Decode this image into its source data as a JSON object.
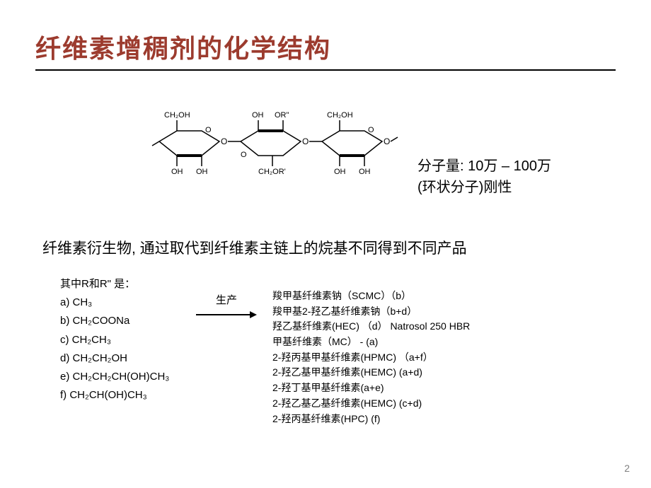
{
  "title": {
    "text": "纤维素增稠剂的化学结构",
    "color": "#9c3b2e"
  },
  "diagram": {
    "labels_top": [
      "CH₂OH",
      "OR\"",
      "CH₂OH"
    ],
    "labels_bottom": [
      "OH",
      "OH",
      "CH₂OR'",
      "OH",
      "OH"
    ],
    "ring_stroke": "#000000"
  },
  "molecular_weight": {
    "line1": "分子量: 10万 – 100万",
    "line2": "(环状分子)刚性"
  },
  "description": "纤维素衍生物, 通过取代到纤维素主链上的烷基不同得到不同产品",
  "r_header": "其中R和R\" 是：",
  "r_options": [
    {
      "key": "a)",
      "formula": "CH₃"
    },
    {
      "key": "b)",
      "formula": "CH₂COONa"
    },
    {
      "key": "c)",
      "formula": "CH₂CH₃"
    },
    {
      "key": "d)",
      "formula": "CH₂CH₂OH"
    },
    {
      "key": "e)",
      "formula": "CH₂CH₂CH(OH)CH₃"
    },
    {
      "key": "f)",
      "formula": "CH₂CH(OH)CH₃"
    }
  ],
  "arrow_label": "生产",
  "products": [
    "羧甲基纤维素钠（SCMC）（b）",
    "羧甲基2-羟乙基纤维素钠（b+d）",
    "羟乙基纤维素(HEC) （d） Natrosol 250 HBR",
    "甲基纤维素（MC） - (a)",
    "2-羟丙基甲基纤维素(HPMC) （a+f）",
    "2-羟乙基甲基纤维素(HEMC) (a+d)",
    "2-羟丁基甲基纤维素(a+e)",
    "2-羟乙基乙基纤维素(HEMC) (c+d)",
    "2-羟丙基纤维素(HPC) (f)"
  ],
  "page_number": "2"
}
